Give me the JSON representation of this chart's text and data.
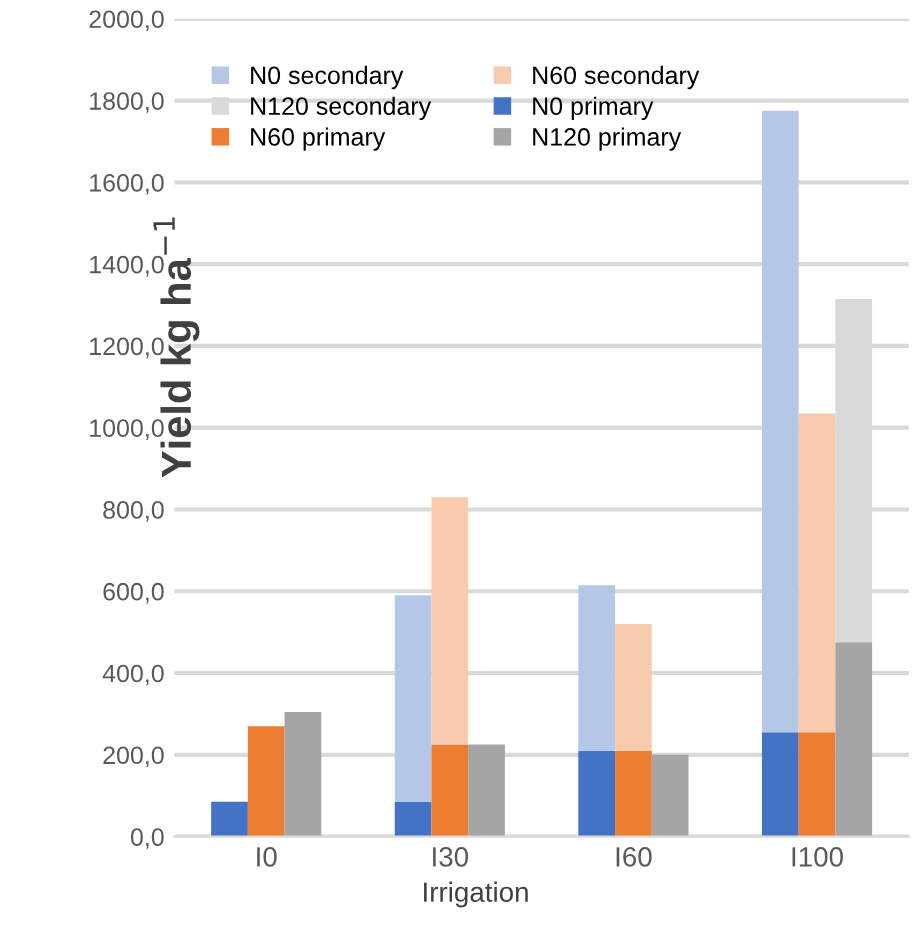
{
  "chart_data": {
    "type": "bar",
    "stacked": true,
    "xlabel": "Irrigation",
    "ylabel": "Yield kg ha$^{−1}$",
    "categories": [
      null,
      null,
      "I0",
      null,
      null,
      null,
      null,
      "I30",
      null,
      null,
      null,
      null,
      "I60",
      null,
      null,
      null,
      null,
      "I100",
      null,
      null
    ],
    "series": [
      {
        "name": "N0 primary",
        "color": "#4472c4",
        "values": [
          null,
          85,
          null,
          null,
          null,
          null,
          85,
          null,
          null,
          null,
          null,
          210,
          null,
          null,
          null,
          null,
          255,
          null,
          null,
          null
        ]
      },
      {
        "name": "N0 secondary",
        "color": "#b4c7e7",
        "values": [
          null,
          0,
          null,
          null,
          null,
          null,
          505,
          null,
          null,
          null,
          null,
          405,
          null,
          null,
          null,
          null,
          1520,
          null,
          null,
          null
        ]
      },
      {
        "name": "N60 primary",
        "color": "#ed7d31",
        "values": [
          null,
          null,
          270,
          null,
          null,
          null,
          null,
          225,
          null,
          null,
          null,
          null,
          210,
          null,
          null,
          null,
          null,
          255,
          null,
          null
        ]
      },
      {
        "name": "N60 secondary",
        "color": "#f8cbad",
        "values": [
          null,
          null,
          0,
          null,
          null,
          null,
          null,
          605,
          null,
          null,
          null,
          null,
          310,
          null,
          null,
          null,
          null,
          780,
          null,
          null
        ]
      },
      {
        "name": "N120 primary",
        "color": "#a5a5a5",
        "values": [
          null,
          null,
          null,
          305,
          null,
          null,
          null,
          null,
          225,
          null,
          null,
          null,
          null,
          200,
          null,
          null,
          null,
          null,
          475,
          null
        ]
      },
      {
        "name": "N120 secondary",
        "color": "#d9d9d9",
        "values": [
          null,
          null,
          null,
          0,
          null,
          null,
          null,
          null,
          0,
          null,
          null,
          null,
          null,
          0,
          null,
          null,
          null,
          null,
          840,
          null
        ]
      }
    ],
    "ylim": [
      0,
      2000
    ],
    "yticks": [
      {
        "value": 0,
        "label": "0,0"
      },
      {
        "value": 200,
        "label": "200,0"
      },
      {
        "value": 400,
        "label": "400,0"
      },
      {
        "value": 600,
        "label": "600,0"
      },
      {
        "value": 800,
        "label": "800,0"
      },
      {
        "value": 1000,
        "label": "1000,0"
      },
      {
        "value": 1200,
        "label": "1200,0"
      },
      {
        "value": 1400,
        "label": "1400,0"
      },
      {
        "value": 1600,
        "label": "1600,0"
      },
      {
        "value": 1800,
        "label": "1800,0"
      },
      {
        "value": 2000,
        "label": "2000,0"
      }
    ],
    "grid": "y",
    "legend": "top left"
  }
}
